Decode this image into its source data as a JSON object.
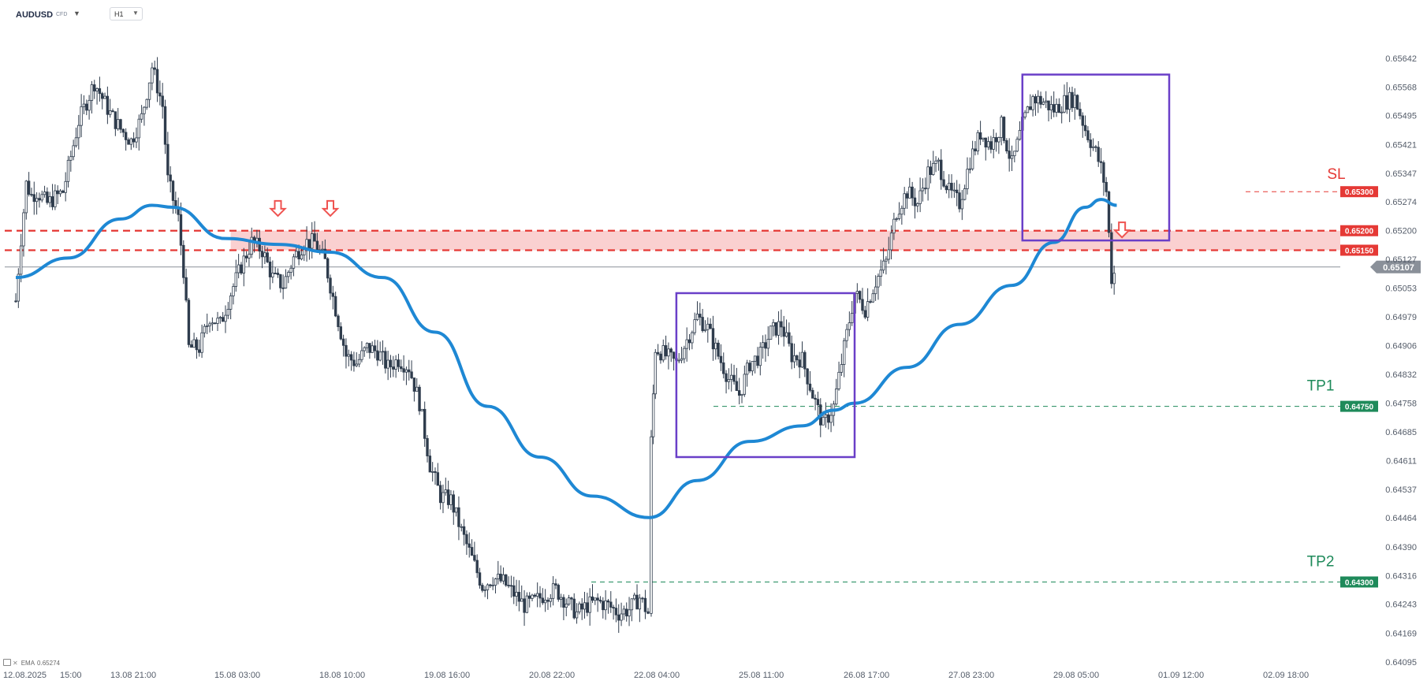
{
  "header": {
    "symbol": "AUDUSD",
    "symbol_type": "CFD",
    "timeframe": "H1"
  },
  "indicator": {
    "label": "EMA",
    "value": "0.65274"
  },
  "colors": {
    "candle": "#2f3c4d",
    "ema": "#1e88d4",
    "resistance": "#e53935",
    "zone_fill": "#f8bcbc",
    "box": "#6a3fc8",
    "tp": "#1e8a5a",
    "sl": "#e53935",
    "current": "#8a9099",
    "arrow": "#ef5350"
  },
  "chart_data": {
    "type": "candlestick",
    "symbol": "AUDUSD",
    "timeframe": "H1",
    "ylim": [
      0.64095,
      0.6568
    ],
    "y_ticks": [
      "0.65642",
      "0.65568",
      "0.65495",
      "0.65421",
      "0.65347",
      "0.65274",
      "0.65200",
      "0.65127",
      "0.65053",
      "0.64979",
      "0.64906",
      "0.64832",
      "0.64758",
      "0.64685",
      "0.64611",
      "0.64537",
      "0.64464",
      "0.64390",
      "0.64316",
      "0.64243",
      "0.64169",
      "0.64095"
    ],
    "x_ticks": [
      "12.08.2025",
      "15:00",
      "13.08  21:00",
      "15.08  03:00",
      "18.08  10:00",
      "19.08  16:00",
      "20.08  22:00",
      "22.08  04:00",
      "25.08  11:00",
      "26.08  17:00",
      "27.08  23:00",
      "29.08  05:00",
      "01.09  12:00",
      "02.09  18:00"
    ],
    "candles": [
      {
        "xt": 0.0,
        "c": 0.6502
      },
      {
        "xt": 0.05,
        "c": 0.6518
      },
      {
        "xt": 0.1,
        "c": 0.6532
      },
      {
        "xt": 0.15,
        "c": 0.6529
      },
      {
        "xt": 0.2,
        "c": 0.653
      },
      {
        "xt": 0.3,
        "c": 0.6527
      },
      {
        "xt": 0.45,
        "c": 0.653
      },
      {
        "xt": 0.6,
        "c": 0.6548
      },
      {
        "xt": 0.75,
        "c": 0.6558
      },
      {
        "xt": 0.9,
        "c": 0.655
      },
      {
        "xt": 1.0,
        "c": 0.6546
      },
      {
        "xt": 1.1,
        "c": 0.6543
      },
      {
        "xt": 1.2,
        "c": 0.6549
      },
      {
        "xt": 1.3,
        "c": 0.6562
      },
      {
        "xt": 1.4,
        "c": 0.6552
      },
      {
        "xt": 1.45,
        "c": 0.6533
      },
      {
        "xt": 1.55,
        "c": 0.6523
      },
      {
        "xt": 1.6,
        "c": 0.651
      },
      {
        "xt": 1.65,
        "c": 0.649
      },
      {
        "xt": 1.75,
        "c": 0.649
      },
      {
        "xt": 1.85,
        "c": 0.6498
      },
      {
        "xt": 1.95,
        "c": 0.6496
      },
      {
        "xt": 2.05,
        "c": 0.6504
      },
      {
        "xt": 2.15,
        "c": 0.6511
      },
      {
        "xt": 2.25,
        "c": 0.6517
      },
      {
        "xt": 2.35,
        "c": 0.6515
      },
      {
        "xt": 2.45,
        "c": 0.6508
      },
      {
        "xt": 2.55,
        "c": 0.6506
      },
      {
        "xt": 2.65,
        "c": 0.6513
      },
      {
        "xt": 2.75,
        "c": 0.6517
      },
      {
        "xt": 2.85,
        "c": 0.6517
      },
      {
        "xt": 2.95,
        "c": 0.6512
      },
      {
        "xt": 3.05,
        "c": 0.65
      },
      {
        "xt": 3.15,
        "c": 0.6488
      },
      {
        "xt": 3.25,
        "c": 0.6486
      },
      {
        "xt": 3.35,
        "c": 0.649
      },
      {
        "xt": 3.45,
        "c": 0.6489
      },
      {
        "xt": 3.55,
        "c": 0.6485
      },
      {
        "xt": 3.65,
        "c": 0.6487
      },
      {
        "xt": 3.75,
        "c": 0.6485
      },
      {
        "xt": 3.85,
        "c": 0.6476
      },
      {
        "xt": 3.95,
        "c": 0.646
      },
      {
        "xt": 4.05,
        "c": 0.6452
      },
      {
        "xt": 4.15,
        "c": 0.6451
      },
      {
        "xt": 4.25,
        "c": 0.6443
      },
      {
        "xt": 4.35,
        "c": 0.6436
      },
      {
        "xt": 4.45,
        "c": 0.6429
      },
      {
        "xt": 4.55,
        "c": 0.6431
      },
      {
        "xt": 4.65,
        "c": 0.643
      },
      {
        "xt": 4.75,
        "c": 0.6427
      },
      {
        "xt": 4.85,
        "c": 0.6424
      },
      {
        "xt": 4.95,
        "c": 0.6425
      },
      {
        "xt": 5.05,
        "c": 0.6427
      },
      {
        "xt": 5.15,
        "c": 0.6428
      },
      {
        "xt": 5.25,
        "c": 0.6425
      },
      {
        "xt": 5.35,
        "c": 0.6422
      },
      {
        "xt": 5.45,
        "c": 0.6424
      },
      {
        "xt": 5.55,
        "c": 0.6425
      },
      {
        "xt": 5.65,
        "c": 0.6424
      },
      {
        "xt": 5.75,
        "c": 0.6422
      },
      {
        "xt": 5.85,
        "c": 0.6423
      },
      {
        "xt": 5.95,
        "c": 0.6426
      },
      {
        "xt": 6.03,
        "c": 0.6422
      },
      {
        "xt": 6.06,
        "c": 0.6466
      },
      {
        "xt": 6.1,
        "c": 0.649
      },
      {
        "xt": 6.2,
        "c": 0.6488
      },
      {
        "xt": 6.3,
        "c": 0.6486
      },
      {
        "xt": 6.4,
        "c": 0.6492
      },
      {
        "xt": 6.5,
        "c": 0.6498
      },
      {
        "xt": 6.6,
        "c": 0.6495
      },
      {
        "xt": 6.7,
        "c": 0.6488
      },
      {
        "xt": 6.8,
        "c": 0.6482
      },
      {
        "xt": 6.9,
        "c": 0.6478
      },
      {
        "xt": 7.0,
        "c": 0.6486
      },
      {
        "xt": 7.1,
        "c": 0.6488
      },
      {
        "xt": 7.2,
        "c": 0.6494
      },
      {
        "xt": 7.3,
        "c": 0.6496
      },
      {
        "xt": 7.4,
        "c": 0.6488
      },
      {
        "xt": 7.5,
        "c": 0.6487
      },
      {
        "xt": 7.6,
        "c": 0.6478
      },
      {
        "xt": 7.7,
        "c": 0.647
      },
      {
        "xt": 7.8,
        "c": 0.6475
      },
      {
        "xt": 7.9,
        "c": 0.649
      },
      {
        "xt": 8.0,
        "c": 0.6504
      },
      {
        "xt": 8.1,
        "c": 0.65
      },
      {
        "xt": 8.2,
        "c": 0.6507
      },
      {
        "xt": 8.3,
        "c": 0.6512
      },
      {
        "xt": 8.4,
        "c": 0.6525
      },
      {
        "xt": 8.5,
        "c": 0.653
      },
      {
        "xt": 8.6,
        "c": 0.6527
      },
      {
        "xt": 8.7,
        "c": 0.6535
      },
      {
        "xt": 8.8,
        "c": 0.6537
      },
      {
        "xt": 8.9,
        "c": 0.653
      },
      {
        "xt": 9.0,
        "c": 0.6527
      },
      {
        "xt": 9.1,
        "c": 0.6538
      },
      {
        "xt": 9.2,
        "c": 0.6545
      },
      {
        "xt": 9.3,
        "c": 0.6542
      },
      {
        "xt": 9.4,
        "c": 0.6547
      },
      {
        "xt": 9.5,
        "c": 0.6537
      },
      {
        "xt": 9.6,
        "c": 0.6547
      },
      {
        "xt": 9.7,
        "c": 0.6554
      },
      {
        "xt": 9.8,
        "c": 0.6553
      },
      {
        "xt": 9.9,
        "c": 0.6551
      },
      {
        "xt": 10.0,
        "c": 0.6553
      },
      {
        "xt": 10.1,
        "c": 0.6554
      },
      {
        "xt": 10.2,
        "c": 0.6546
      },
      {
        "xt": 10.3,
        "c": 0.654
      },
      {
        "xt": 10.35,
        "c": 0.6536
      },
      {
        "xt": 10.4,
        "c": 0.653
      },
      {
        "xt": 10.45,
        "c": 0.6508
      },
      {
        "xt": 10.5,
        "c": 0.651
      }
    ],
    "ema": {
      "name": "EMA",
      "points": [
        {
          "xt": 0.0,
          "y": 0.6508
        },
        {
          "xt": 0.5,
          "y": 0.6513
        },
        {
          "xt": 1.0,
          "y": 0.6523
        },
        {
          "xt": 1.3,
          "y": 0.65265
        },
        {
          "xt": 1.5,
          "y": 0.6526
        },
        {
          "xt": 2.0,
          "y": 0.6518
        },
        {
          "xt": 2.5,
          "y": 0.65165
        },
        {
          "xt": 3.0,
          "y": 0.65145
        },
        {
          "xt": 3.5,
          "y": 0.6508
        },
        {
          "xt": 4.0,
          "y": 0.6494
        },
        {
          "xt": 4.5,
          "y": 0.6475
        },
        {
          "xt": 5.0,
          "y": 0.6462
        },
        {
          "xt": 5.5,
          "y": 0.6452
        },
        {
          "xt": 6.04,
          "y": 0.64465
        },
        {
          "xt": 6.5,
          "y": 0.6456
        },
        {
          "xt": 7.0,
          "y": 0.6466
        },
        {
          "xt": 7.5,
          "y": 0.647
        },
        {
          "xt": 7.8,
          "y": 0.6474
        },
        {
          "xt": 8.0,
          "y": 0.64758
        },
        {
          "xt": 8.5,
          "y": 0.6485
        },
        {
          "xt": 9.0,
          "y": 0.6496
        },
        {
          "xt": 9.5,
          "y": 0.6506
        },
        {
          "xt": 9.9,
          "y": 0.6517
        },
        {
          "xt": 10.2,
          "y": 0.6526
        },
        {
          "xt": 10.35,
          "y": 0.6528
        },
        {
          "xt": 10.5,
          "y": 0.65265
        }
      ]
    },
    "levels": [
      {
        "name": "SL",
        "label": "SL",
        "price": "0.65300",
        "value": 0.653,
        "style": "dashed-thin",
        "color": "#e53935"
      },
      {
        "name": "resistance-upper",
        "price": "0.65200",
        "value": 0.652,
        "style": "dashed-thick",
        "color": "#e53935"
      },
      {
        "name": "resistance-lower",
        "price": "0.65150",
        "value": 0.6515,
        "style": "dashed-thick",
        "color": "#e53935"
      },
      {
        "name": "current",
        "price": "0.65107",
        "value": 0.65107,
        "style": "solid-thin",
        "color": "#8a9099"
      },
      {
        "name": "TP1",
        "label": "TP1",
        "price": "0.64750",
        "value": 0.6475,
        "style": "dashed-thin",
        "color": "#1e8a5a"
      },
      {
        "name": "TP2",
        "label": "TP2",
        "price": "0.64300",
        "value": 0.643,
        "style": "dashed-thin",
        "color": "#1e8a5a"
      }
    ],
    "zone": {
      "from": 0.6515,
      "to": 0.652,
      "start_xt": 2.05
    },
    "boxes": [
      {
        "name": "consolidation-box",
        "xt_start": 6.3,
        "xt_end": 8.0,
        "y_low": 0.6462,
        "y_high": 0.6504
      },
      {
        "name": "top-box",
        "xt_start": 9.6,
        "xt_end": 11.0,
        "y_low": 0.65175,
        "y_high": 0.656
      }
    ],
    "signals": [
      {
        "xt": 2.5,
        "value": 0.6524
      },
      {
        "xt": 3.0,
        "value": 0.6524
      },
      {
        "xt": 10.55,
        "value": 0.65185
      }
    ]
  }
}
